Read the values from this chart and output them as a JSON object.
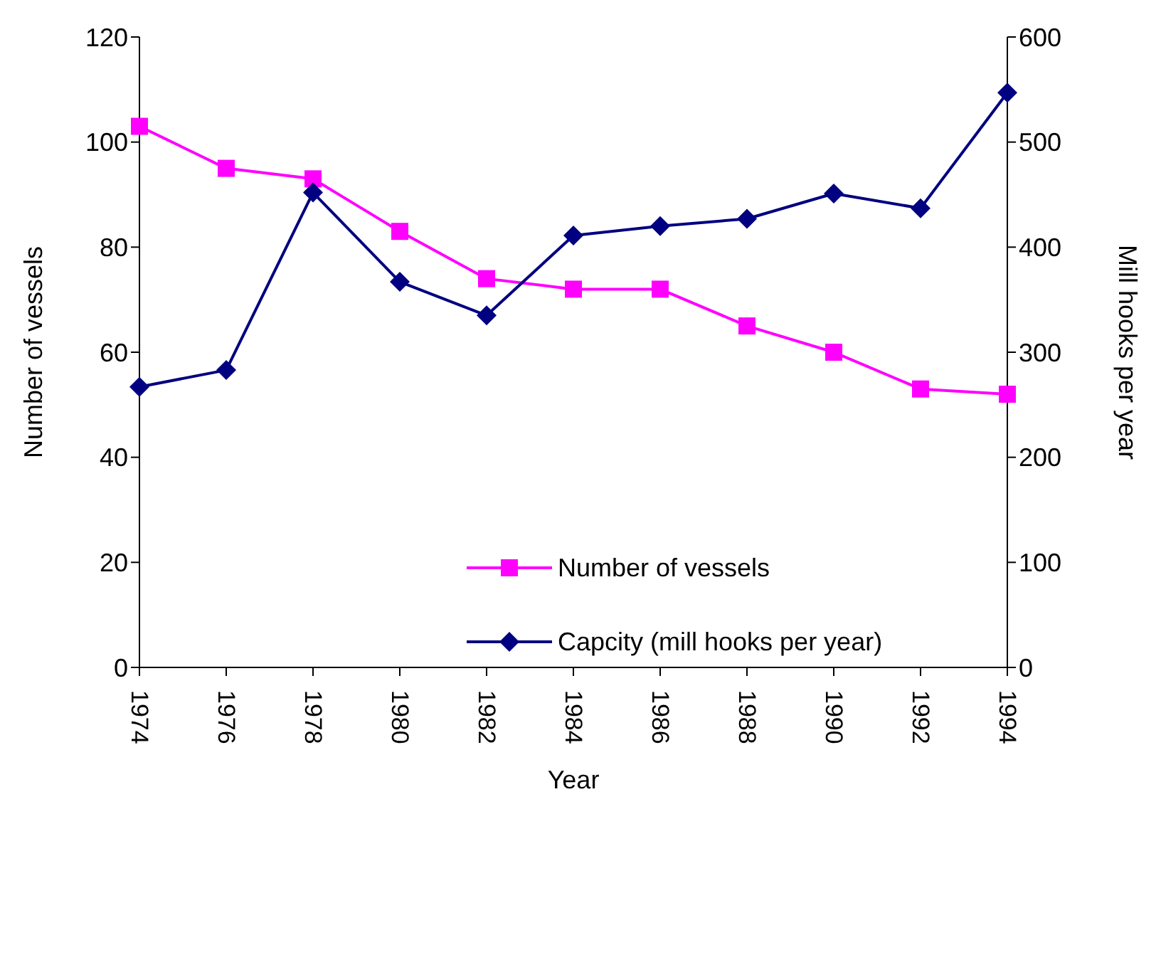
{
  "chart_data": {
    "type": "line",
    "xlabel": "Year",
    "ylabel": "Number of vessels",
    "y2label": "Mill hooks per year",
    "categories": [
      "1974",
      "1976",
      "1978",
      "1980",
      "1982",
      "1984",
      "1986",
      "1988",
      "1990",
      "1992",
      "1994"
    ],
    "series": [
      {
        "name": "Number of vessels",
        "color": "#ff00ff",
        "marker": "square",
        "values": [
          103,
          95,
          93,
          83,
          74,
          72,
          72,
          65,
          60,
          53,
          52
        ]
      },
      {
        "name": "Capcity (mill hooks per year)",
        "color": "#000080",
        "marker": "diamond",
        "axis": "y2",
        "values": [
          267,
          283,
          452,
          367,
          335,
          411,
          420,
          427,
          451,
          437,
          547
        ]
      }
    ],
    "ylim": [
      0,
      120
    ],
    "yticks": [
      0,
      20,
      40,
      60,
      80,
      100,
      120
    ],
    "y2lim": [
      0,
      600
    ],
    "y2ticks": [
      0,
      100,
      200,
      300,
      400,
      500,
      600
    ],
    "legend": "bottom",
    "grid": false,
    "line_style": "solid"
  }
}
